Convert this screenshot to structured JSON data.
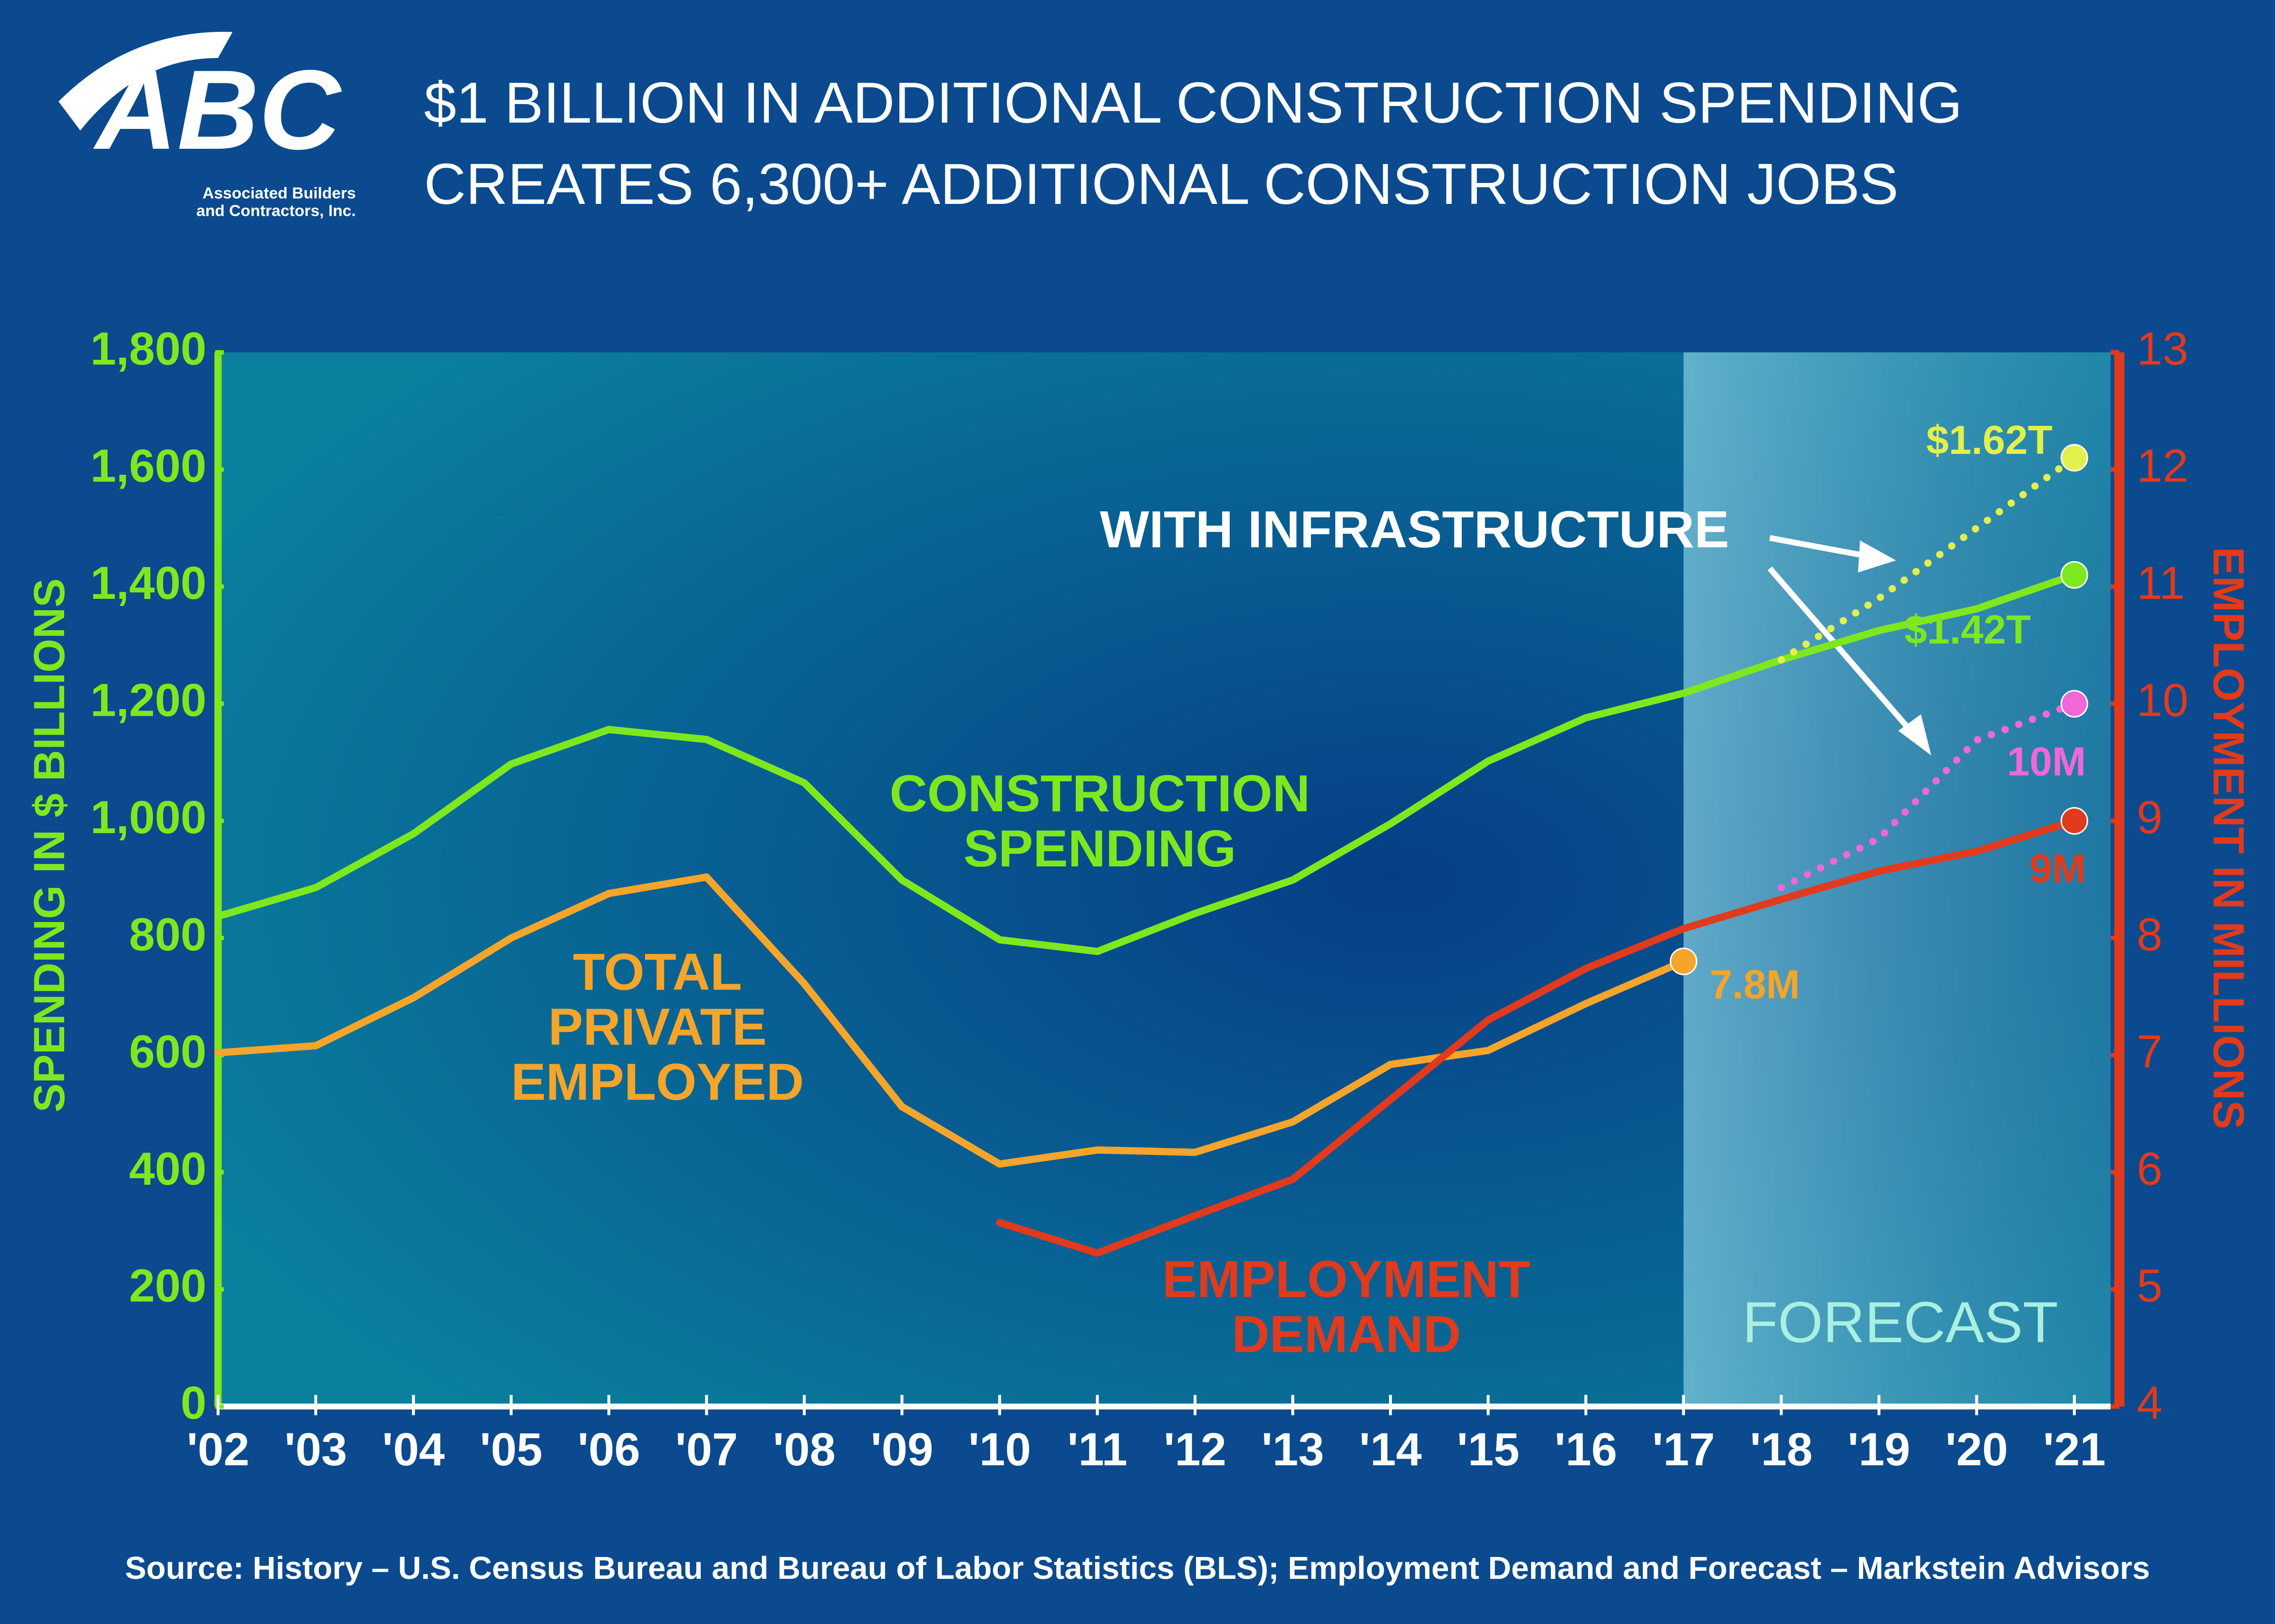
{
  "logo": {
    "text": "ABC",
    "subtitle": [
      "Associated Builders",
      "and Contractors, Inc."
    ]
  },
  "chart_data": {
    "type": "line",
    "title": [
      "$1 BILLION IN ADDITIONAL CONSTRUCTION SPENDING",
      "CREATES 6,300+ ADDITIONAL CONSTRUCTION JOBS"
    ],
    "y_label": "SPENDING IN $ BILLIONS",
    "y2_label": "EMPLOYMENT IN MILLIONS",
    "categories": [
      "'02",
      "'03",
      "'04",
      "'05",
      "'06",
      "'07",
      "'08",
      "'09",
      "'10",
      "'11",
      "'12",
      "'13",
      "'14",
      "'15",
      "'16",
      "'17",
      "'18",
      "'19",
      "'20",
      "'21"
    ],
    "ylim": [
      0,
      1800
    ],
    "yticks": [
      0,
      200,
      400,
      600,
      800,
      {
        "value": 1000,
        "label": "1,000"
      },
      {
        "value": 1200,
        "label": "1,200"
      },
      {
        "value": 1400,
        "label": "1,400"
      },
      {
        "value": 1600,
        "label": "1,600"
      },
      {
        "value": 1800,
        "label": "1,800"
      }
    ],
    "y2lim": [
      4,
      13
    ],
    "y2ticks": [
      4,
      5,
      6,
      7,
      8,
      9,
      10,
      11,
      12,
      13
    ],
    "forecast_from": "'17",
    "forecast_label": "FORECAST",
    "series": [
      {
        "name": [
          "CONSTRUCTION",
          "SPENDING"
        ],
        "color": "#7ee81e",
        "style": "solid",
        "values": [
          837,
          886,
          978,
          1097,
          1156,
          1139,
          1065,
          899,
          797,
          777,
          842,
          899,
          995,
          1102,
          1176,
          1218,
          1275,
          1325,
          1362,
          1420
        ],
        "value_labels": [
          null,
          null,
          null,
          null,
          null,
          null,
          null,
          null,
          null,
          null,
          null,
          null,
          null,
          null,
          null,
          null,
          null,
          null,
          null,
          "$1.42T"
        ]
      },
      {
        "name": [
          "WITH INFRASTRUCTURE"
        ],
        "color": "#e4f04a",
        "style": "dotted",
        "values": [
          null,
          null,
          null,
          null,
          null,
          null,
          null,
          null,
          null,
          null,
          null,
          null,
          null,
          null,
          null,
          null,
          1275,
          1380,
          1500,
          1620
        ],
        "value_labels": [
          null,
          null,
          null,
          null,
          null,
          null,
          null,
          null,
          null,
          null,
          null,
          null,
          null,
          null,
          null,
          null,
          null,
          null,
          null,
          "$1.62T"
        ]
      },
      {
        "name": [
          "TOTAL",
          "PRIVATE",
          "EMPLOYED"
        ],
        "color": "#f5a52a",
        "style": "solid",
        "axis": "y2",
        "values": [
          7.02,
          7.08,
          7.49,
          8.0,
          8.38,
          8.52,
          7.61,
          6.56,
          6.07,
          6.19,
          6.17,
          6.43,
          6.92,
          7.04,
          7.44,
          7.8,
          null,
          null,
          null,
          null
        ],
        "value_labels": [
          null,
          null,
          null,
          null,
          null,
          null,
          null,
          null,
          null,
          null,
          null,
          null,
          null,
          null,
          null,
          "7.8M",
          null,
          null,
          null,
          null
        ]
      },
      {
        "name": [
          "EMPLOYMENT",
          "DEMAND"
        ],
        "color": "#e23a1c",
        "style": "solid",
        "axis": "y2",
        "values": [
          null,
          null,
          null,
          null,
          null,
          null,
          null,
          null,
          5.57,
          5.31,
          5.63,
          5.94,
          6.62,
          7.3,
          7.74,
          8.08,
          8.33,
          8.57,
          8.74,
          9
        ],
        "value_labels": [
          null,
          null,
          null,
          null,
          null,
          null,
          null,
          null,
          null,
          null,
          null,
          null,
          null,
          null,
          null,
          null,
          null,
          null,
          null,
          "9M"
        ]
      },
      {
        "color": "#f068d8",
        "style": "dotted",
        "axis": "y2",
        "values": [
          null,
          null,
          null,
          null,
          null,
          null,
          null,
          null,
          null,
          null,
          null,
          null,
          null,
          null,
          null,
          null,
          8.43,
          8.85,
          9.69,
          10
        ],
        "value_labels": [
          null,
          null,
          null,
          null,
          null,
          null,
          null,
          null,
          null,
          null,
          null,
          null,
          null,
          null,
          null,
          null,
          null,
          null,
          null,
          "10M"
        ]
      }
    ],
    "source": "Source:  History – U.S. Census Bureau and Bureau of Labor Statistics (BLS);  Employment Demand and Forecast – Markstein Advisors"
  }
}
